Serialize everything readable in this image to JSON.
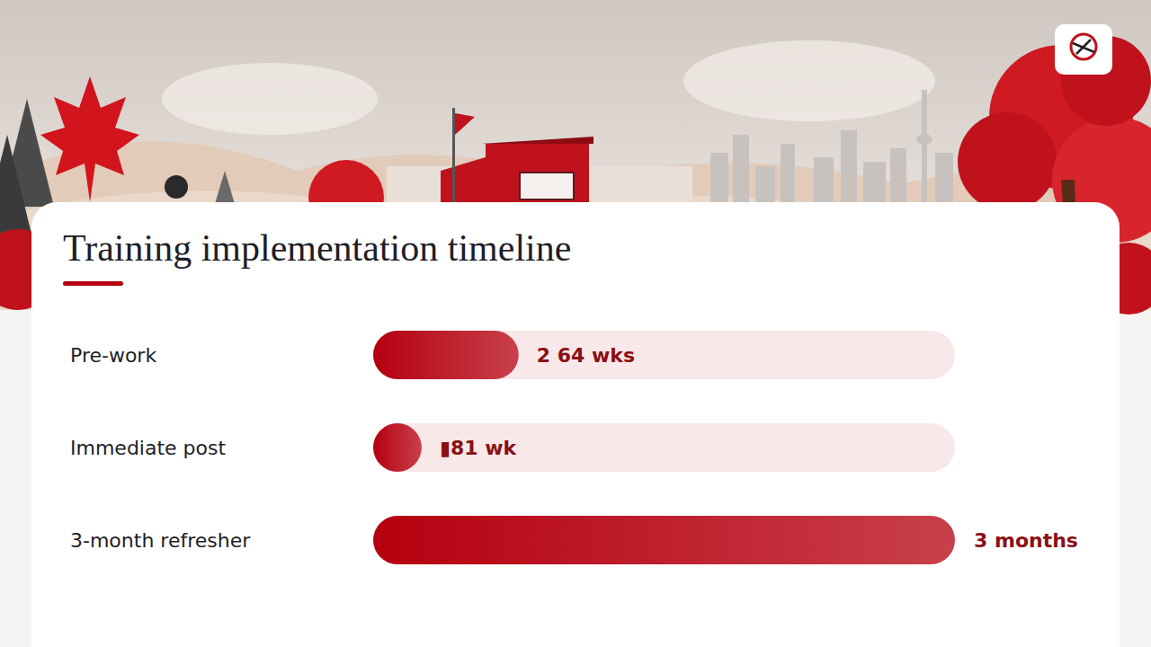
{
  "chart_data": {
    "type": "bar",
    "title": "Training implementation timeline",
    "orientation": "horizontal",
    "categories": [
      "Pre-work",
      "Immediate post",
      "3-month refresher"
    ],
    "values": [
      3,
      1,
      12
    ],
    "value_labels": [
      "2 64 wks",
      "▮81 wk",
      "3 months"
    ],
    "xlim": [
      0,
      12
    ],
    "data_labels": true,
    "tick_labels": "y",
    "grid": false,
    "color": "#b5000f"
  }
}
